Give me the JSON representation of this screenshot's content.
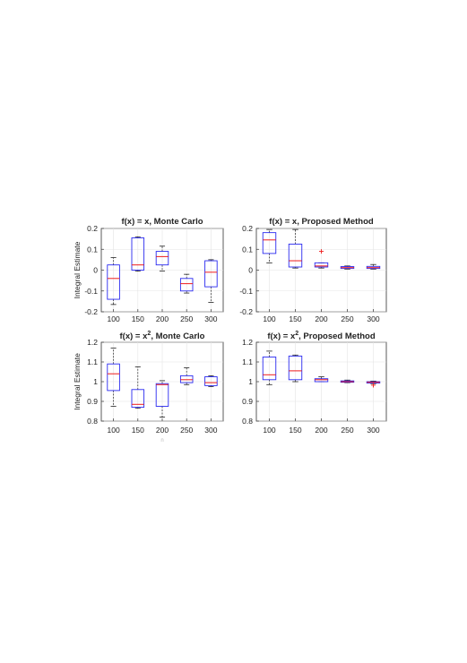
{
  "figure": {
    "ylabel": "Integral Estimate",
    "xlabel_stub": "n"
  },
  "chart_data": [
    {
      "type": "box",
      "title": "f(x) = x, Monte Carlo",
      "title_parts": {
        "prefix": "f(x) = x",
        "superscript": "",
        "suffix": ", Monte Carlo"
      },
      "ylabel": "Integral Estimate",
      "categories": [
        "100",
        "150",
        "200",
        "250",
        "300"
      ],
      "ylim": [
        -0.2,
        0.2
      ],
      "yticks": [
        "-0.2",
        "-0.1",
        "0",
        "0.1",
        "0.2"
      ],
      "grid": true,
      "boxes": [
        {
          "whisker_low": -0.165,
          "q1": -0.14,
          "median": -0.04,
          "q3": 0.025,
          "whisker_high": 0.06,
          "outliers": []
        },
        {
          "whisker_low": -0.005,
          "q1": 0.0,
          "median": 0.025,
          "q3": 0.155,
          "whisker_high": 0.16,
          "outliers": []
        },
        {
          "whisker_low": -0.005,
          "q1": 0.025,
          "median": 0.065,
          "q3": 0.09,
          "whisker_high": 0.115,
          "outliers": []
        },
        {
          "whisker_low": -0.11,
          "q1": -0.1,
          "median": -0.065,
          "q3": -0.04,
          "whisker_high": -0.02,
          "outliers": []
        },
        {
          "whisker_low": -0.155,
          "q1": -0.08,
          "median": -0.01,
          "q3": 0.045,
          "whisker_high": 0.05,
          "outliers": []
        }
      ]
    },
    {
      "type": "box",
      "title": "f(x) = x, Proposed Method",
      "title_parts": {
        "prefix": "f(x) = x",
        "superscript": "",
        "suffix": ", Proposed Method"
      },
      "ylabel": "",
      "categories": [
        "100",
        "150",
        "200",
        "250",
        "300"
      ],
      "ylim": [
        -0.2,
        0.2
      ],
      "yticks": [
        "-0.2",
        "-0.1",
        "0",
        "0.1",
        "0.2"
      ],
      "grid": true,
      "boxes": [
        {
          "whisker_low": 0.035,
          "q1": 0.08,
          "median": 0.145,
          "q3": 0.18,
          "whisker_high": 0.195,
          "outliers": []
        },
        {
          "whisker_low": 0.01,
          "q1": 0.015,
          "median": 0.045,
          "q3": 0.125,
          "whisker_high": 0.195,
          "outliers": []
        },
        {
          "whisker_low": 0.01,
          "q1": 0.015,
          "median": 0.02,
          "q3": 0.035,
          "whisker_high": 0.035,
          "outliers": [
            0.09
          ]
        },
        {
          "whisker_low": 0.005,
          "q1": 0.008,
          "median": 0.012,
          "q3": 0.017,
          "whisker_high": 0.02,
          "outliers": []
        },
        {
          "whisker_low": 0.005,
          "q1": 0.008,
          "median": 0.012,
          "q3": 0.018,
          "whisker_high": 0.027,
          "outliers": []
        }
      ]
    },
    {
      "type": "box",
      "title": "f(x) = x2, Monte Carlo",
      "title_parts": {
        "prefix": "f(x) = x",
        "superscript": "2",
        "suffix": ", Monte Carlo"
      },
      "ylabel": "Integral Estimate",
      "categories": [
        "100",
        "150",
        "200",
        "250",
        "300"
      ],
      "ylim": [
        0.8,
        1.2
      ],
      "yticks": [
        "0.8",
        "0.9",
        "1",
        "1.1",
        "1.2"
      ],
      "grid": true,
      "boxes": [
        {
          "whisker_low": 0.875,
          "q1": 0.955,
          "median": 1.04,
          "q3": 1.09,
          "whisker_high": 1.17,
          "outliers": []
        },
        {
          "whisker_low": 0.865,
          "q1": 0.87,
          "median": 0.885,
          "q3": 0.96,
          "whisker_high": 1.075,
          "outliers": []
        },
        {
          "whisker_low": 0.82,
          "q1": 0.875,
          "median": 0.985,
          "q3": 0.99,
          "whisker_high": 1.005,
          "outliers": []
        },
        {
          "whisker_low": 0.985,
          "q1": 0.995,
          "median": 1.01,
          "q3": 1.03,
          "whisker_high": 1.07,
          "outliers": []
        },
        {
          "whisker_low": 0.975,
          "q1": 0.98,
          "median": 0.995,
          "q3": 1.025,
          "whisker_high": 1.03,
          "outliers": []
        }
      ]
    },
    {
      "type": "box",
      "title": "f(x) = x2, Proposed Method",
      "title_parts": {
        "prefix": "f(x) = x",
        "superscript": "2",
        "suffix": ", Proposed Method"
      },
      "ylabel": "",
      "categories": [
        "100",
        "150",
        "200",
        "250",
        "300"
      ],
      "ylim": [
        0.8,
        1.2
      ],
      "yticks": [
        "0.8",
        "0.9",
        "1",
        "1.1",
        "1.2"
      ],
      "grid": true,
      "boxes": [
        {
          "whisker_low": 0.985,
          "q1": 1.01,
          "median": 1.035,
          "q3": 1.125,
          "whisker_high": 1.155,
          "outliers": []
        },
        {
          "whisker_low": 1.0,
          "q1": 1.01,
          "median": 1.055,
          "q3": 1.13,
          "whisker_high": 1.135,
          "outliers": []
        },
        {
          "whisker_low": 1.0,
          "q1": 1.0,
          "median": 1.01,
          "q3": 1.015,
          "whisker_high": 1.025,
          "outliers": []
        },
        {
          "whisker_low": 0.995,
          "q1": 0.997,
          "median": 1.0,
          "q3": 1.004,
          "whisker_high": 1.008,
          "outliers": []
        },
        {
          "whisker_low": 0.99,
          "q1": 0.993,
          "median": 0.997,
          "q3": 1.0,
          "whisker_high": 1.003,
          "outliers": [
            0.982
          ]
        }
      ]
    }
  ],
  "colors": {
    "box": "#2a2af0",
    "median": "#ee1c1c",
    "outlier": "#ee1c1c",
    "whisker": "#222222",
    "grid": "#e4e4e4",
    "axis": "#333333",
    "text": "#222222"
  }
}
